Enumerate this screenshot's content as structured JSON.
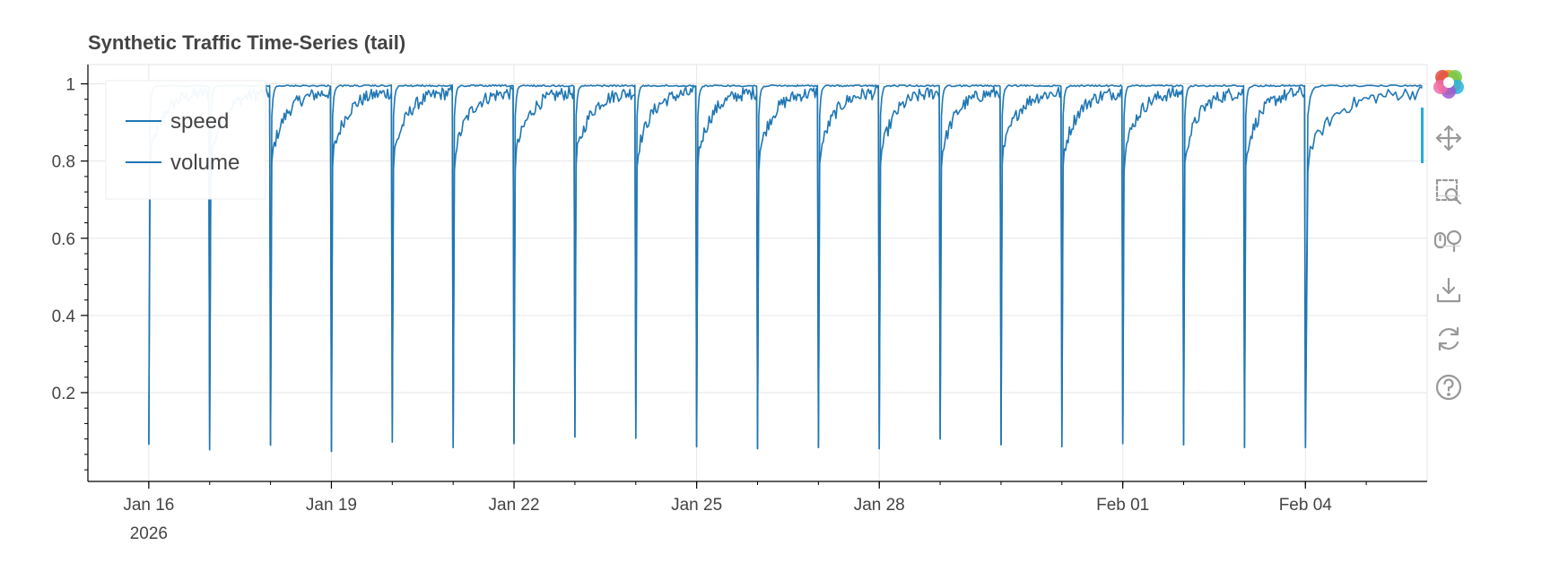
{
  "chart_data": {
    "type": "line",
    "title": "Synthetic Traffic Time-Series (tail)",
    "xlabel": "",
    "ylabel": "",
    "x_range": [
      "2026-01-15",
      "2026-02-06"
    ],
    "ylim": [
      0,
      1.05
    ],
    "y_ticks": [
      0.2,
      0.4,
      0.6,
      0.8,
      1
    ],
    "y_tick_labels": [
      "0.2",
      "0.4",
      "0.6",
      "0.8",
      "1"
    ],
    "x_ticks": [
      "2026-01-16",
      "2026-01-19",
      "2026-01-22",
      "2026-01-25",
      "2026-01-28",
      "2026-02-01",
      "2026-02-04"
    ],
    "x_tick_labels": [
      "Jan 16",
      "Jan 19",
      "Jan 22",
      "Jan 25",
      "Jan 28",
      "Feb 01",
      "Feb 04"
    ],
    "x_tick_sublabel": "2026",
    "grid": true,
    "legend_position": "top-left",
    "series": [
      {
        "name": "speed",
        "color": "#1f77b4",
        "pattern": "daily cycle: sharp dip near 0.06 at the start of each day, then saturating near 1.0",
        "daily_min": [
          0.065,
          0.052,
          0.064,
          0.048,
          0.072,
          0.058,
          0.068,
          0.085,
          0.082,
          0.06,
          0.055,
          0.058,
          0.055,
          0.08,
          0.065,
          0.06,
          0.068,
          0.065,
          0.058
        ],
        "daily_max": 0.997
      },
      {
        "name": "volume",
        "color": "#1f77b4",
        "pattern": "daily cycle: sharp dip near 0.06 at the start of each day, then slow noisy recovery toward 0.97",
        "daily_min": [
          0.065,
          0.052,
          0.064,
          0.048,
          0.072,
          0.058,
          0.068,
          0.085,
          0.082,
          0.06,
          0.055,
          0.058,
          0.055,
          0.08,
          0.065,
          0.06,
          0.068,
          0.065,
          0.058
        ],
        "daily_max": 0.98
      }
    ],
    "day_starts": [
      "2026-01-16",
      "2026-01-17",
      "2026-01-18",
      "2026-01-19",
      "2026-01-20",
      "2026-01-21",
      "2026-01-22",
      "2026-01-23",
      "2026-01-24",
      "2026-01-25",
      "2026-01-26",
      "2026-01-27",
      "2026-01-28",
      "2026-01-29",
      "2026-01-30",
      "2026-01-31",
      "2026-02-01",
      "2026-02-02",
      "2026-02-03",
      "2026-02-04"
    ],
    "last_timestamp": "2026-02-05"
  },
  "toolbar": {
    "tools": [
      "bokeh-logo",
      "pan-icon",
      "box-zoom-icon",
      "wheel-zoom-icon",
      "save-icon",
      "reset-icon",
      "help-icon"
    ]
  }
}
